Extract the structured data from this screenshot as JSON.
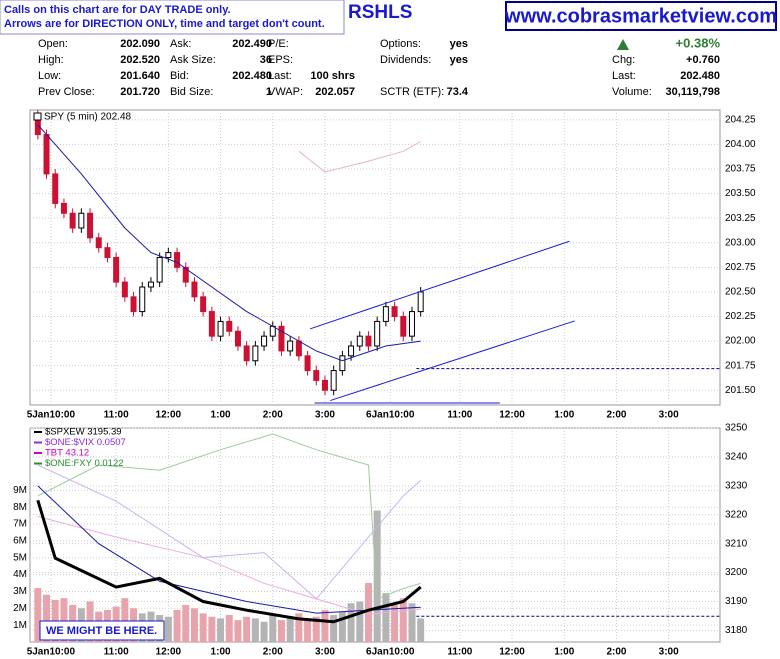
{
  "header": {
    "notes": [
      "Calls on this chart are for DAY TRADE only.",
      "Arrows are for DIRECTION ONLY, time and target don't count."
    ],
    "symbol": "RSHLS",
    "site": "www.cobrasmarketview.com"
  },
  "quote": {
    "rows": [
      [
        [
          "Open:",
          "202.090"
        ],
        [
          "Ask:",
          "202.490"
        ],
        [
          "P/E:",
          ""
        ],
        [
          "Options:",
          "yes"
        ],
        [
          "",
          "+0.38%"
        ]
      ],
      [
        [
          "High:",
          "202.520"
        ],
        [
          "Ask Size:",
          "36"
        ],
        [
          "EPS:",
          ""
        ],
        [
          "Dividends:",
          "yes"
        ],
        [
          "Chg:",
          "+0.760"
        ]
      ],
      [
        [
          "Low:",
          "201.640"
        ],
        [
          "Bid:",
          "202.480"
        ],
        [
          "Last:",
          "100 shrs"
        ],
        [
          "",
          ""
        ],
        [
          "Last:",
          "202.480"
        ]
      ],
      [
        [
          "Prev Close:",
          "201.720"
        ],
        [
          "Bid Size:",
          "1"
        ],
        [
          "VWAP:",
          "202.057"
        ],
        [
          "SCTR (ETF):",
          "73.4"
        ],
        [
          "Volume:",
          "30,119,798"
        ]
      ]
    ]
  },
  "annotation": "WE MIGHT BE HERE.",
  "chart_data": [
    {
      "type": "candlestick",
      "legend": "SPY (5 min) 202.48",
      "up_color": "#ffffff",
      "down_color": "#cc1133",
      "grid": true,
      "x": [
        0,
        1,
        2,
        3,
        4,
        5,
        6,
        7,
        8,
        9,
        10,
        11,
        12,
        13,
        14,
        15,
        16,
        17,
        18,
        19,
        20,
        21,
        22,
        23,
        24,
        25,
        26,
        27,
        28,
        29,
        30,
        31,
        32,
        33,
        34,
        35,
        36,
        37,
        38,
        39,
        40,
        41,
        42,
        43,
        44
      ],
      "open": [
        204.3,
        204.1,
        203.7,
        203.4,
        203.3,
        203.15,
        203.3,
        203.05,
        202.95,
        202.85,
        202.6,
        202.45,
        202.3,
        202.55,
        202.6,
        202.85,
        202.9,
        202.75,
        202.6,
        202.45,
        202.3,
        202.05,
        202.2,
        202.1,
        201.95,
        201.8,
        201.95,
        202.05,
        202.15,
        201.9,
        202.0,
        201.85,
        201.7,
        201.6,
        201.5,
        201.7,
        201.85,
        201.95,
        202.05,
        201.95,
        202.2,
        202.35,
        202.25,
        202.05,
        202.3
      ],
      "high": [
        204.35,
        204.15,
        203.75,
        203.45,
        203.35,
        203.35,
        203.35,
        203.1,
        203.0,
        202.9,
        202.65,
        202.5,
        202.6,
        202.65,
        202.9,
        202.95,
        202.95,
        202.8,
        202.65,
        202.5,
        202.35,
        202.25,
        202.25,
        202.15,
        202.0,
        202.0,
        202.1,
        202.2,
        202.2,
        202.05,
        202.05,
        201.9,
        201.75,
        201.65,
        201.75,
        201.9,
        202.0,
        202.1,
        202.1,
        202.25,
        202.4,
        202.4,
        202.3,
        202.35,
        202.55
      ],
      "low": [
        204.05,
        203.65,
        203.35,
        203.25,
        203.1,
        203.1,
        203.0,
        202.9,
        202.8,
        202.55,
        202.4,
        202.25,
        202.25,
        202.5,
        202.55,
        202.8,
        202.7,
        202.55,
        202.4,
        202.25,
        202.0,
        202.0,
        202.05,
        201.9,
        201.75,
        201.75,
        201.9,
        202.0,
        201.85,
        201.85,
        201.8,
        201.65,
        201.55,
        201.45,
        201.45,
        201.65,
        201.8,
        201.9,
        201.9,
        201.9,
        202.15,
        202.2,
        202.0,
        202.0,
        202.25
      ],
      "close": [
        204.1,
        203.7,
        203.4,
        203.3,
        203.15,
        203.3,
        203.05,
        202.95,
        202.85,
        202.6,
        202.45,
        202.3,
        202.55,
        202.6,
        202.85,
        202.9,
        202.75,
        202.6,
        202.45,
        202.3,
        202.05,
        202.2,
        202.1,
        201.95,
        201.8,
        201.95,
        202.05,
        202.15,
        201.9,
        202.0,
        201.85,
        201.7,
        201.6,
        201.5,
        201.7,
        201.85,
        201.95,
        202.05,
        201.95,
        202.2,
        202.35,
        202.25,
        202.05,
        202.3,
        202.5
      ],
      "overlays": [
        {
          "color": "#1a1aa6",
          "x": [
            0,
            5,
            10,
            13,
            16,
            20,
            24,
            28,
            32,
            35,
            40,
            44
          ],
          "values": [
            204.2,
            203.7,
            203.15,
            202.9,
            202.8,
            202.55,
            202.3,
            202.1,
            201.9,
            201.8,
            201.95,
            202.0
          ]
        },
        {
          "color": "#e8b4c8",
          "x": [
            30,
            33,
            38,
            42,
            44
          ],
          "values": [
            203.93,
            203.72,
            203.83,
            203.93,
            204.03
          ]
        }
      ],
      "trendlines": [
        {
          "color": "#1a1adf",
          "x": [
            31.3,
            61.1
          ],
          "values": [
            202.125,
            203.015
          ]
        },
        {
          "color": "#1a1adf",
          "x": [
            33.6,
            61.7
          ],
          "values": [
            201.395,
            202.205
          ]
        },
        {
          "color": "#1a1adf",
          "x": [
            31.8,
            53.1
          ],
          "values": [
            201.37,
            201.37
          ]
        },
        {
          "color": "#000080",
          "dashed": true,
          "x": [
            43.5,
            78.4
          ],
          "values": [
            201.72,
            201.72
          ]
        }
      ],
      "xlim": [
        -0.9,
        78.4
      ],
      "xticks": [
        {
          "value": 1.5,
          "label": "5Jan10:00"
        },
        {
          "value": 9,
          "label": "11:00"
        },
        {
          "value": 15,
          "label": "12:00"
        },
        {
          "value": 21,
          "label": "1:00"
        },
        {
          "value": 27,
          "label": "2:00"
        },
        {
          "value": 33,
          "label": "3:00"
        },
        {
          "value": 40.5,
          "label": "6Jan10:00"
        },
        {
          "value": 48.5,
          "label": "11:00"
        },
        {
          "value": 54.5,
          "label": "12:00"
        },
        {
          "value": 60.5,
          "label": "1:00"
        },
        {
          "value": 66.5,
          "label": "2:00"
        },
        {
          "value": 72.5,
          "label": "3:00"
        }
      ],
      "ylim": [
        201.35,
        204.35
      ],
      "yticks": [
        {
          "value": 201.5,
          "label": "201.50"
        },
        201.75,
        {
          "value": 202,
          "label": "202.00"
        },
        202.25,
        {
          "value": 202.5,
          "label": "202.50"
        },
        202.75,
        {
          "value": 203,
          "label": "203.00"
        },
        203.25,
        {
          "value": 203.5,
          "label": "203.50"
        },
        203.75,
        {
          "value": 204,
          "label": "204.00"
        },
        204.25
      ]
    },
    {
      "type": "line",
      "grid": true,
      "up_color": "#b4b4b4",
      "down_color": "#e8a4ac",
      "volume": [
        3200000,
        2800000,
        2500000,
        2600000,
        2200000,
        2000000,
        2400000,
        1800000,
        1900000,
        2100000,
        2600000,
        2000000,
        1700000,
        1800000,
        1600000,
        1500000,
        1900000,
        2200000,
        2000000,
        1700000,
        1500000,
        1400000,
        1600000,
        1300000,
        1500000,
        1400000,
        1200000,
        1600000,
        1300000,
        1500000,
        1700000,
        1400000,
        1500000,
        1900000,
        1600000,
        1800000,
        2300000,
        2400000,
        3500000,
        7800000,
        2900000,
        2200000,
        2600000,
        2300000,
        1400000
      ],
      "series": [
        {
          "name": "$ONE:FXY 0.0122",
          "color": "#9ccc9c",
          "legend_color": "#2e8b2e",
          "axis": "y2",
          "x": [
            0,
            7,
            14,
            21,
            27,
            32,
            38,
            39,
            42,
            44
          ],
          "values": [
            3226.5,
            3237.2,
            3235.4,
            3242.5,
            3247.9,
            3242.5,
            3237.2,
            3190.9,
            3194.5,
            3196.3
          ]
        },
        {
          "name": "TBT 43.12",
          "color": "#ecaee0",
          "legend_color": "#cc00cc",
          "axis": "y2",
          "x": [
            0,
            9,
            19,
            26,
            32,
            38,
            44
          ],
          "values": [
            3219.4,
            3212.3,
            3205.2,
            3196.3,
            3190.9,
            3185.6,
            3187.4
          ]
        },
        {
          "name": "$ONE:$VIX 0.0507",
          "color": "#c8b4f0",
          "legend_color": "#8a2be2",
          "axis": "y2",
          "x": [
            0,
            9,
            19,
            26,
            32,
            38,
            42,
            44
          ],
          "values": [
            3237.2,
            3224.7,
            3205.2,
            3206.9,
            3190.9,
            3212.3,
            3226.5,
            3231.9
          ]
        },
        {
          "color": "#1a1aa6",
          "axis": "y2",
          "x": [
            0,
            7,
            14,
            24,
            32,
            44
          ],
          "values": [
            3230,
            3210,
            3197,
            3190,
            3186,
            3188
          ]
        },
        {
          "name": "$SPXEW 3195.39",
          "color": "#000000",
          "width": 3,
          "axis": "y2",
          "x": [
            0,
            2,
            9,
            14,
            19,
            24,
            30,
            34,
            38,
            42,
            44
          ],
          "values": [
            3225,
            3205,
            3195,
            3198,
            3190,
            3187,
            3184,
            3183,
            3187,
            3190,
            3195
          ]
        }
      ],
      "trendlines": [
        {
          "color": "#000080",
          "dashed": true,
          "axis": "y2",
          "x": [
            43.5,
            78.4
          ],
          "values": [
            3184.9,
            3184.9
          ]
        }
      ],
      "xlim": [
        -0.9,
        78.4
      ],
      "xticks": [
        {
          "value": 1.5,
          "label": "5Jan10:00"
        },
        {
          "value": 9,
          "label": "11:00"
        },
        {
          "value": 15,
          "label": "12:00"
        },
        {
          "value": 21,
          "label": "1:00"
        },
        {
          "value": 27,
          "label": "2:00"
        },
        {
          "value": 33,
          "label": "3:00"
        },
        {
          "value": 40.5,
          "label": "6Jan10:00"
        },
        {
          "value": 48.5,
          "label": "11:00"
        },
        {
          "value": 54.5,
          "label": "12:00"
        },
        {
          "value": 60.5,
          "label": "1:00"
        },
        {
          "value": 66.5,
          "label": "2:00"
        },
        {
          "value": 72.5,
          "label": "3:00"
        }
      ],
      "ylim": [
        0,
        12700000
      ],
      "yticks": [
        {
          "value": 1000000,
          "label": "1M"
        },
        {
          "value": 2000000,
          "label": "2M"
        },
        {
          "value": 3000000,
          "label": "3M"
        },
        {
          "value": 4000000,
          "label": "4M"
        },
        {
          "value": 5000000,
          "label": "5M"
        },
        {
          "value": 6000000,
          "label": "6M"
        },
        {
          "value": 7000000,
          "label": "7M"
        },
        {
          "value": 8000000,
          "label": "8M"
        },
        {
          "value": 9000000,
          "label": "9M"
        }
      ],
      "y2lim": [
        3176,
        3250
      ],
      "y2ticks": [
        3180,
        3190,
        3200,
        3210,
        3220,
        3230,
        3240,
        3250
      ]
    }
  ]
}
